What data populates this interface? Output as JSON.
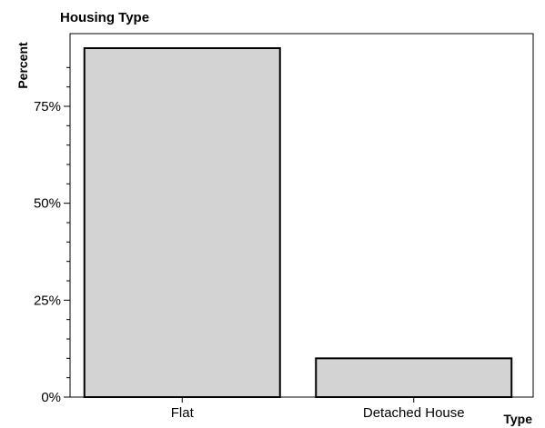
{
  "chart_data": {
    "type": "bar",
    "title": "Housing Type",
    "xlabel": "Type",
    "ylabel": "Percent",
    "categories": [
      "Flat",
      "Detached House"
    ],
    "values": [
      90,
      10
    ],
    "ylim": [
      0,
      100
    ],
    "yticks": [
      0,
      25,
      50,
      75
    ],
    "ytick_labels": [
      "0%",
      "25%",
      "50%",
      "75%"
    ],
    "grid": false,
    "bar_color": "#d3d3d3",
    "bar_edge_color": "#000000"
  }
}
